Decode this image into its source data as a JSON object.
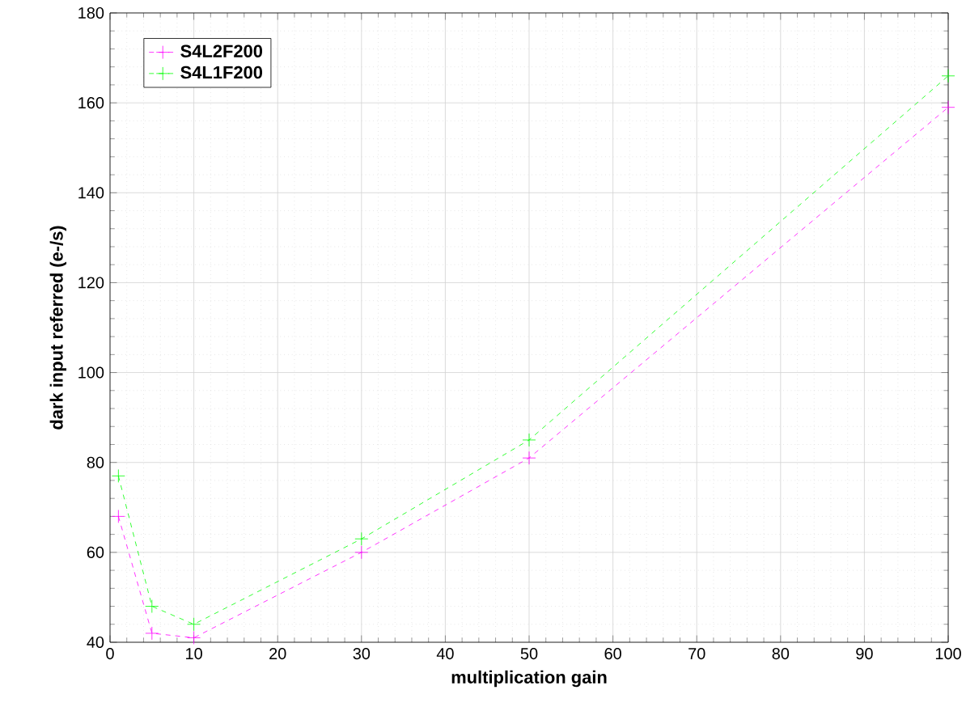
{
  "chart_data": {
    "type": "line",
    "xlabel": "multiplication gain",
    "ylabel": "dark input referred (e-/s)",
    "x": [
      1,
      5,
      10,
      30,
      50,
      100
    ],
    "series": [
      {
        "name": "S4L2F200",
        "color": "#ff00ff",
        "values": [
          68,
          42,
          41,
          60,
          81,
          159
        ]
      },
      {
        "name": "S4L1F200",
        "color": "#00ff00",
        "values": [
          77,
          48,
          44,
          63,
          85,
          166
        ]
      }
    ],
    "xlim": [
      0,
      100
    ],
    "xticks": [
      0,
      10,
      20,
      30,
      40,
      50,
      60,
      70,
      80,
      90,
      100
    ],
    "ylim": [
      40,
      180
    ],
    "yticks": [
      40,
      60,
      80,
      100,
      120,
      140,
      160,
      180
    ],
    "grid": true,
    "legend": "top left",
    "marker": "cross",
    "line_style": "dashed"
  }
}
